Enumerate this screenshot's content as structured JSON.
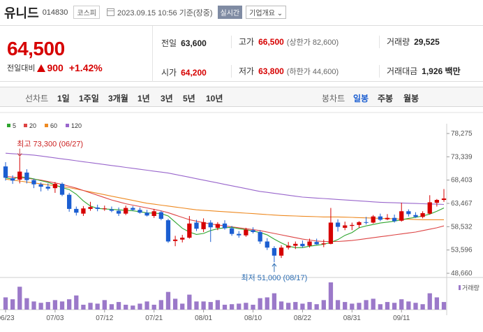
{
  "header": {
    "name": "유니드",
    "code": "014830",
    "market": "코스피",
    "datetime": "2023.09.15 10:56 기준(장중)",
    "realtime": "실시간",
    "company_info": "기업개요"
  },
  "quote": {
    "price": "64,500",
    "change_label": "전일대비",
    "change": "900",
    "change_pct": "+1.42%",
    "prev_close_label": "전일",
    "prev_close": "63,600",
    "high_label": "고가",
    "high": "66,500",
    "upper_limit": "(상한가 82,600)",
    "volume_label": "거래량",
    "volume": "29,525",
    "open_label": "시가",
    "open": "64,200",
    "low_label": "저가",
    "low": "63,800",
    "lower_limit": "(하한가 44,600)",
    "amount_label": "거래대금",
    "amount": "1,926 백만"
  },
  "toolbar": {
    "line_label": "선차트",
    "periods": [
      "1일",
      "1주일",
      "3개월",
      "1년",
      "3년",
      "5년",
      "10년"
    ],
    "candle_label": "봉차트",
    "candles": [
      "일봉",
      "주봉",
      "월봉"
    ],
    "active_candle": "일봉"
  },
  "colors": {
    "up": "#d60000",
    "down": "#1b5ed1",
    "ma5": "#2ea52e",
    "ma20": "#dd4444",
    "ma60": "#ee8a22",
    "ma120": "#9966cc",
    "volume": "#9b79c9"
  },
  "chart_data": {
    "type": "candlestick",
    "legend": [
      {
        "name": "5",
        "color": "#2ea52e"
      },
      {
        "name": "20",
        "color": "#dd4444"
      },
      {
        "name": "60",
        "color": "#ee8a22"
      },
      {
        "name": "120",
        "color": "#9966cc"
      }
    ],
    "yticks": [
      "78,275",
      "73,339",
      "68,403",
      "63,467",
      "58,532",
      "53,596",
      "48,660"
    ],
    "ylim": [
      48660,
      78275
    ],
    "xticks": [
      "06/23",
      "07/03",
      "07/12",
      "07/21",
      "08/01",
      "08/10",
      "08/22",
      "08/31",
      "09/11"
    ],
    "xtick_index": [
      0,
      7,
      14,
      21,
      28,
      35,
      42,
      49,
      56
    ],
    "max_annotation": {
      "label": "최고",
      "value": "73,300 (06/27)",
      "index": 2
    },
    "min_annotation": {
      "label": "최저",
      "value": "51,000 (08/17)",
      "index": 38
    },
    "volume_label": "거래량",
    "candles": [
      [
        71300,
        72200,
        68300,
        68900
      ],
      [
        68800,
        69400,
        67600,
        68300
      ],
      [
        68500,
        73300,
        67700,
        70200
      ],
      [
        70000,
        70700,
        67700,
        68400
      ],
      [
        68400,
        68700,
        66700,
        67500
      ],
      [
        67500,
        67900,
        66000,
        67000
      ],
      [
        67000,
        67700,
        66200,
        66600
      ],
      [
        66700,
        68000,
        65700,
        67600
      ],
      [
        67600,
        67900,
        65000,
        65300
      ],
      [
        65300,
        65700,
        61700,
        62300
      ],
      [
        62300,
        62800,
        60900,
        61500
      ],
      [
        61300,
        62900,
        60800,
        62400
      ],
      [
        62300,
        63800,
        61900,
        62700
      ],
      [
        62600,
        63200,
        61800,
        62300
      ],
      [
        62300,
        63000,
        61900,
        62400
      ],
      [
        62200,
        62800,
        61600,
        61900
      ],
      [
        61900,
        62600,
        60800,
        61300
      ],
      [
        61300,
        63000,
        61000,
        62500
      ],
      [
        62500,
        62900,
        61900,
        62100
      ],
      [
        62100,
        62600,
        61300,
        61500
      ],
      [
        61500,
        62100,
        60700,
        60900
      ],
      [
        60800,
        62300,
        60400,
        61800
      ],
      [
        61600,
        61900,
        59900,
        60200
      ],
      [
        59900,
        60200,
        55100,
        55400
      ],
      [
        55500,
        56600,
        54400,
        55800
      ],
      [
        55800,
        56800,
        55200,
        56200
      ],
      [
        56200,
        60800,
        56000,
        59200
      ],
      [
        59400,
        60000,
        57600,
        58100
      ],
      [
        58000,
        60300,
        57400,
        59500
      ],
      [
        59400,
        59900,
        55300,
        58400
      ],
      [
        58300,
        59500,
        57800,
        59100
      ],
      [
        59200,
        59900,
        57900,
        58200
      ],
      [
        58200,
        58700,
        56600,
        57000
      ],
      [
        57000,
        57600,
        56200,
        56700
      ],
      [
        56700,
        58300,
        56400,
        57900
      ],
      [
        57800,
        58400,
        57100,
        57400
      ],
      [
        57400,
        57800,
        54900,
        55400
      ],
      [
        55400,
        56100,
        53600,
        54100
      ],
      [
        54000,
        54400,
        51000,
        52400
      ],
      [
        52400,
        54600,
        51900,
        54100
      ],
      [
        54100,
        55300,
        53700,
        54500
      ],
      [
        54500,
        55400,
        53800,
        54900
      ],
      [
        54900,
        55600,
        54100,
        54400
      ],
      [
        54500,
        56000,
        54100,
        55400
      ],
      [
        55300,
        56000,
        54700,
        54800
      ],
      [
        54800,
        55800,
        54200,
        55000
      ],
      [
        54900,
        62500,
        54800,
        59400
      ],
      [
        59400,
        60100,
        57500,
        58500
      ],
      [
        58300,
        59600,
        57800,
        58800
      ],
      [
        58700,
        59400,
        57800,
        58900
      ],
      [
        58900,
        59700,
        58300,
        59500
      ],
      [
        59500,
        60600,
        59000,
        59400
      ],
      [
        59400,
        61000,
        59200,
        60700
      ],
      [
        60700,
        61300,
        59700,
        60000
      ],
      [
        60100,
        61200,
        59900,
        60400
      ],
      [
        60400,
        61100,
        59400,
        59700
      ],
      [
        59800,
        63600,
        59600,
        61800
      ],
      [
        61800,
        62200,
        60700,
        61200
      ],
      [
        61000,
        61600,
        60400,
        60600
      ],
      [
        60600,
        61800,
        60300,
        61400
      ],
      [
        61300,
        65200,
        61100,
        63700
      ],
      [
        63600,
        64400,
        62800,
        64200
      ],
      [
        64200,
        66500,
        63800,
        64500
      ]
    ],
    "volumes": [
      45,
      38,
      84,
      42,
      30,
      25,
      28,
      35,
      30,
      38,
      52,
      18,
      25,
      22,
      35,
      20,
      28,
      18,
      15,
      22,
      30,
      18,
      35,
      65,
      40,
      22,
      55,
      30,
      30,
      28,
      35,
      18,
      20,
      22,
      25,
      18,
      42,
      45,
      60,
      30,
      25,
      28,
      22,
      28,
      20,
      35,
      100,
      35,
      28,
      22,
      25,
      35,
      40,
      20,
      28,
      25,
      38,
      30,
      25,
      20,
      60,
      45,
      28
    ],
    "ma_series": {
      "ma5": [
        68900,
        68600,
        69133,
        68950,
        68660,
        68280,
        67940,
        67380,
        66800,
        66400,
        65400,
        64000,
        62900,
        62400,
        62300,
        62200,
        62100,
        62000,
        61900,
        61700,
        61450,
        61400,
        61300,
        60800,
        59500,
        58200,
        57400,
        56900,
        57100,
        57700,
        58100,
        58300,
        58400,
        58100,
        57900,
        57600,
        57300,
        56800,
        55900,
        55100,
        54400,
        54100,
        54100,
        54400,
        54600,
        54800,
        55200,
        55800,
        56700,
        57300,
        58300,
        58700,
        59000,
        59300,
        59500,
        59700,
        60000,
        60300,
        60500,
        60800,
        61200,
        61800,
        62500
      ],
      "ma20": [
        69200,
        69000,
        68900,
        68800,
        68600,
        68400,
        68100,
        67800,
        67500,
        67100,
        66700,
        66200,
        65700,
        65200,
        64700,
        64200,
        63800,
        63400,
        63100,
        62800,
        62500,
        62200,
        61900,
        61500,
        61000,
        60500,
        60000,
        59700,
        59400,
        59100,
        58900,
        58700,
        58500,
        58300,
        58100,
        57900,
        57700,
        57400,
        57100,
        56800,
        56500,
        56200,
        55900,
        55700,
        55500,
        55400,
        55400,
        55400,
        55500,
        55600,
        55800,
        56000,
        56200,
        56400,
        56600,
        56800,
        57000,
        57200,
        57400,
        57700,
        58000,
        58300,
        58700
      ],
      "ma60": [
        68600,
        68400,
        68200,
        68000,
        67800,
        67600,
        67400,
        67200,
        67000,
        66800,
        66500,
        66200,
        65900,
        65600,
        65300,
        65000,
        64700,
        64400,
        64100,
        63800,
        63500,
        63300,
        63100,
        62900,
        62700,
        62500,
        62300,
        62100,
        62000,
        61900,
        61800,
        61700,
        61600,
        61500,
        61400,
        61300,
        61200,
        61100,
        61000,
        60900,
        60850,
        60800,
        60750,
        60700,
        60650,
        60600,
        60600,
        60600,
        60550,
        60500,
        60450,
        60400,
        60350,
        60300,
        60250,
        60200,
        60150,
        60100,
        60050,
        60000,
        60000,
        60000,
        60000
      ],
      "ma120": [
        74100,
        74000,
        73900,
        73800,
        73700,
        73500,
        73300,
        73100,
        72900,
        72700,
        72500,
        72300,
        72100,
        71900,
        71700,
        71500,
        71300,
        71100,
        70900,
        70700,
        70500,
        70300,
        70100,
        69900,
        69600,
        69300,
        69000,
        68700,
        68400,
        68100,
        67800,
        67500,
        67200,
        66900,
        66600,
        66300,
        66000,
        65800,
        65600,
        65400,
        65200,
        65000,
        64800,
        64700,
        64600,
        64500,
        64400,
        64300,
        64200,
        64100,
        64000,
        63900,
        63800,
        63700,
        63650,
        63600,
        63550,
        63500,
        63450,
        63400,
        63350,
        63300,
        63250
      ]
    }
  }
}
